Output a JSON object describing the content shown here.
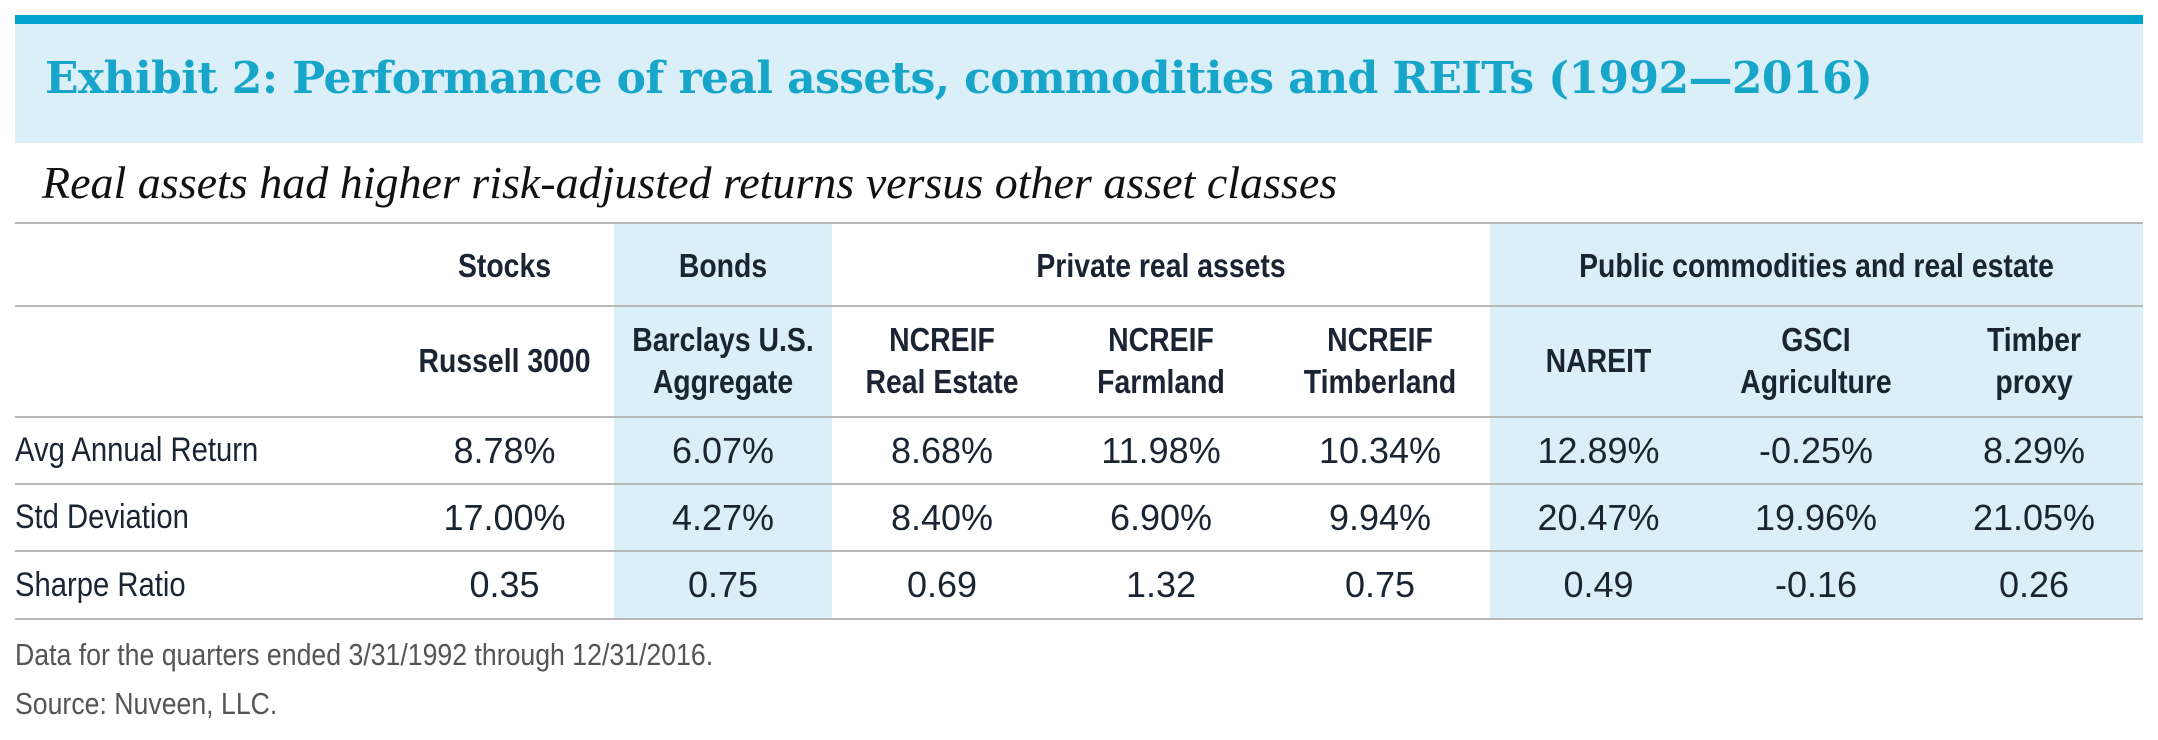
{
  "title": "Exhibit 2: Performance of real assets, commodities and REITs (1992—2016)",
  "subtitle": "Real assets had higher risk-adjusted returns versus other asset classes",
  "colors": {
    "accent": "#17a6c9",
    "band": "#dbeff8",
    "rule": "#00a3cc"
  },
  "chart_data": {
    "type": "table",
    "groups": [
      "Stocks",
      "Bonds",
      "Private real assets",
      "Public commodities and real estate"
    ],
    "columns": [
      {
        "line1": "",
        "line2": "Russell 3000"
      },
      {
        "line1": "Barclays U.S.",
        "line2": "Aggregate"
      },
      {
        "line1": "NCREIF",
        "line2": "Real Estate"
      },
      {
        "line1": "NCREIF",
        "line2": "Farmland"
      },
      {
        "line1": "NCREIF",
        "line2": "Timberland"
      },
      {
        "line1": "",
        "line2": "NAREIT"
      },
      {
        "line1": "GSCI",
        "line2": "Agriculture"
      },
      {
        "line1": "Timber",
        "line2": "proxy"
      }
    ],
    "rows": [
      {
        "label": "Avg Annual Return",
        "values": [
          "8.78%",
          "6.07%",
          "8.68%",
          "11.98%",
          "10.34%",
          "12.89%",
          "-0.25%",
          "8.29%"
        ]
      },
      {
        "label": "Std Deviation",
        "values": [
          "17.00%",
          "4.27%",
          "8.40%",
          "6.90%",
          "9.94%",
          "20.47%",
          "19.96%",
          "21.05%"
        ]
      },
      {
        "label": "Sharpe Ratio",
        "values": [
          "0.35",
          "0.75",
          "0.69",
          "1.32",
          "0.75",
          "0.49",
          "-0.16",
          "0.26"
        ]
      }
    ]
  },
  "footnotes": {
    "note": "Data for the quarters ended 3/31/1992 through 12/31/2016.",
    "source": "Source: Nuveen, LLC."
  }
}
